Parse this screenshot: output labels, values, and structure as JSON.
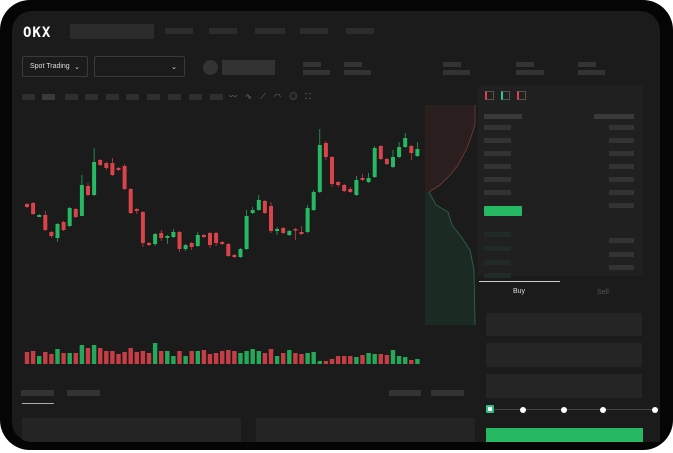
{
  "header": {
    "logo": "OKX"
  },
  "market": {
    "mode_label": "Spot Trading",
    "pair_label": ""
  },
  "trade_panel": {
    "tabs": [
      "Buy",
      "Sell"
    ],
    "active_tab": "Buy"
  },
  "colors": {
    "up": "#26b862",
    "down": "#d9434a",
    "background": "#1b1b1b",
    "panel": "#202020"
  },
  "icons": [
    "chevron-down-icon",
    "indicator-icon",
    "line-tool-icon",
    "brush-icon",
    "gauge-icon",
    "settings-icon",
    "fullscreen-icon",
    "orderbook-both-icon",
    "orderbook-bids-icon",
    "orderbook-asks-icon"
  ],
  "leverage_slider": {
    "value": 0,
    "stops": 5
  },
  "chart_data": {
    "type": "candlestick",
    "title": "",
    "candles": [
      [
        96,
        93,
        97,
        92
      ],
      [
        97,
        86,
        98,
        85
      ],
      [
        83,
        85,
        86,
        83
      ],
      [
        85,
        70,
        89,
        69
      ],
      [
        68,
        64,
        69,
        62
      ],
      [
        62,
        76,
        77,
        58
      ],
      [
        78,
        70,
        79,
        69
      ],
      [
        74,
        92,
        93,
        73
      ],
      [
        91,
        83,
        92,
        82
      ],
      [
        84,
        115,
        125,
        84
      ],
      [
        114,
        105,
        117,
        104
      ],
      [
        105,
        138,
        152,
        104
      ],
      [
        140,
        135,
        141,
        134
      ],
      [
        137,
        132,
        138,
        130
      ],
      [
        137,
        125,
        142,
        124
      ],
      [
        132,
        130,
        133,
        129
      ],
      [
        134,
        111,
        136,
        110
      ],
      [
        111,
        87,
        112,
        86
      ],
      [
        91,
        89,
        92,
        86
      ],
      [
        88,
        57,
        89,
        53
      ],
      [
        57,
        55,
        58,
        54
      ],
      [
        56,
        66,
        67,
        54
      ],
      [
        67,
        62,
        70,
        59
      ],
      [
        62,
        64,
        65,
        56
      ],
      [
        63,
        68,
        71,
        62
      ],
      [
        68,
        51,
        69,
        48
      ],
      [
        51,
        55,
        56,
        49
      ],
      [
        57,
        53,
        58,
        50
      ],
      [
        54,
        65,
        68,
        53
      ],
      [
        65,
        63,
        66,
        62
      ],
      [
        67,
        55,
        68,
        52
      ],
      [
        67,
        57,
        68,
        54
      ],
      [
        58,
        56,
        59,
        55
      ],
      [
        56,
        44,
        57,
        43
      ],
      [
        45,
        43,
        46,
        42
      ],
      [
        43,
        51,
        52,
        42
      ],
      [
        51,
        84,
        90,
        50
      ],
      [
        87,
        90,
        93,
        86
      ],
      [
        90,
        100,
        105,
        89
      ],
      [
        99,
        87,
        100,
        86
      ],
      [
        94,
        69,
        98,
        67
      ],
      [
        69,
        71,
        73,
        65
      ],
      [
        72,
        67,
        73,
        66
      ],
      [
        65,
        69,
        70,
        64
      ],
      [
        71,
        70,
        72,
        60
      ],
      [
        68,
        66,
        74,
        65
      ],
      [
        68,
        92,
        95,
        67
      ],
      [
        90,
        108,
        110,
        89
      ],
      [
        108,
        155,
        171,
        107
      ],
      [
        157,
        143,
        159,
        140
      ],
      [
        143,
        116,
        144,
        113
      ],
      [
        118,
        115,
        119,
        113
      ],
      [
        115,
        109,
        116,
        108
      ],
      [
        111,
        108,
        113,
        107
      ],
      [
        105,
        120,
        124,
        104
      ],
      [
        122,
        120,
        126,
        119
      ],
      [
        118,
        122,
        127,
        117
      ],
      [
        123,
        152,
        154,
        122
      ],
      [
        154,
        141,
        155,
        140
      ],
      [
        141,
        136,
        142,
        135
      ],
      [
        133,
        143,
        150,
        132
      ],
      [
        143,
        153,
        158,
        142
      ],
      [
        153,
        162,
        167,
        152
      ],
      [
        154,
        147,
        155,
        140
      ],
      [
        144,
        151,
        158,
        143
      ]
    ],
    "candle_fields": [
      "open",
      "close",
      "high",
      "low"
    ],
    "volume": [
      12,
      13,
      8,
      12,
      10,
      15,
      11,
      11,
      11,
      19,
      16,
      19,
      16,
      13,
      13,
      10,
      12,
      16,
      12,
      13,
      11,
      21,
      13,
      13,
      8,
      13,
      8,
      13,
      13,
      14,
      10,
      11,
      13,
      14,
      13,
      11,
      13,
      15,
      13,
      11,
      15,
      8,
      11,
      14,
      11,
      10,
      11,
      12,
      3,
      3,
      5,
      8,
      8,
      8,
      7,
      9,
      11,
      10,
      10,
      9,
      14,
      8,
      7,
      4,
      5
    ]
  }
}
